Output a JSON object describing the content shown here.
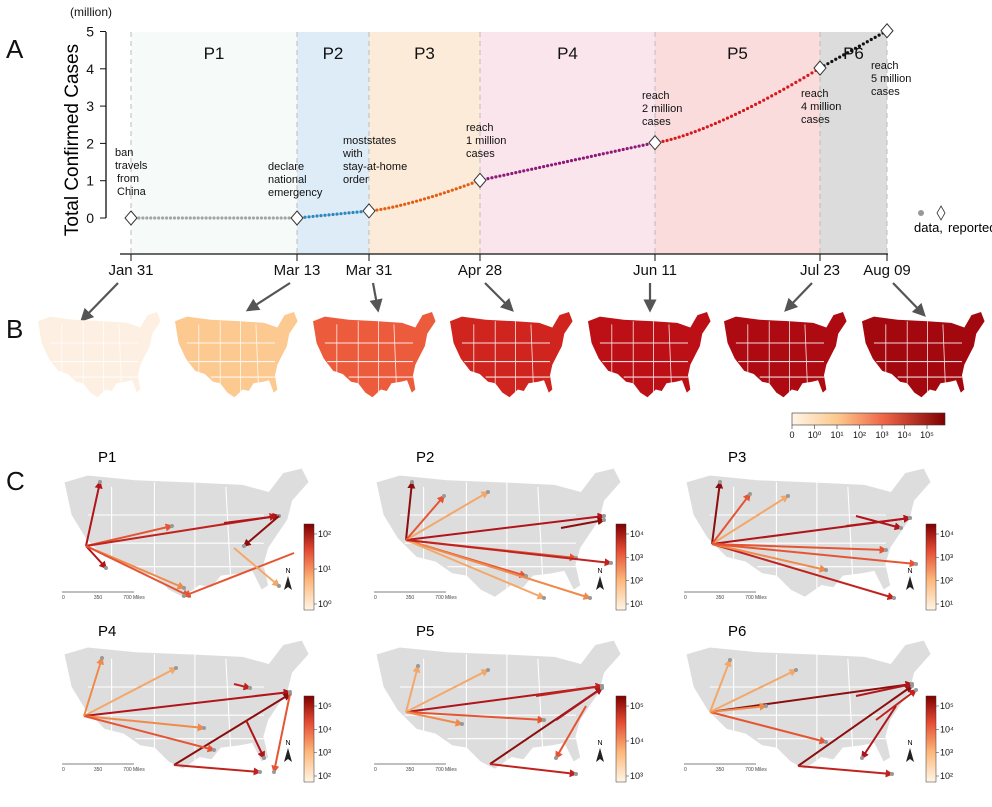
{
  "panels": {
    "a": "A",
    "b": "B",
    "c": "C"
  },
  "chart_data": {
    "type": "line",
    "ylabel": "Total Confirmed Cases",
    "yunit": "(million)",
    "ylim": [
      0,
      5
    ],
    "yticks": [
      "0",
      "1",
      "2",
      "3",
      "4",
      "5"
    ],
    "x_dates": [
      "Jan 31",
      "Mar 13",
      "Mar 31",
      "Apr 28",
      "Jun 11",
      "Jul 23",
      "Aug 09"
    ],
    "phases": [
      {
        "name": "P1",
        "start": "Jan 31",
        "end": "Mar 13",
        "color": "#f6fbf9"
      },
      {
        "name": "P2",
        "start": "Mar 13",
        "end": "Mar 31",
        "color": "#deecf8"
      },
      {
        "name": "P3",
        "start": "Mar 31",
        "end": "Apr 28",
        "color": "#fcebd9"
      },
      {
        "name": "P4",
        "start": "Apr 28",
        "end": "Jun 11",
        "color": "#fbe5ec"
      },
      {
        "name": "P5",
        "start": "Jun 11",
        "end": "Jul 23",
        "color": "#fbdcdc"
      },
      {
        "name": "P6",
        "start": "Jul 23",
        "end": "Aug 09",
        "color": "#dcdcdc"
      }
    ],
    "series": [
      {
        "phase": "P1",
        "color": "#a5a5a5",
        "points": [
          [
            "Jan 31",
            0.0
          ],
          [
            "Mar 13",
            0.0
          ]
        ]
      },
      {
        "phase": "P2",
        "color": "#2f86bd",
        "points": [
          [
            "Mar 13",
            0.0
          ],
          [
            "Mar 31",
            0.19
          ]
        ]
      },
      {
        "phase": "P3",
        "color": "#e35d12",
        "points": [
          [
            "Mar 31",
            0.19
          ],
          [
            "Apr 28",
            1.01
          ]
        ]
      },
      {
        "phase": "P4",
        "color": "#8e1a79",
        "points": [
          [
            "Apr 28",
            1.01
          ],
          [
            "Jun 11",
            2.02
          ]
        ]
      },
      {
        "phase": "P5",
        "color": "#d7191c",
        "points": [
          [
            "Jun 11",
            2.02
          ],
          [
            "Jul 23",
            4.02
          ]
        ]
      },
      {
        "phase": "P6",
        "color": "#111111",
        "points": [
          [
            "Jul 23",
            4.02
          ],
          [
            "Aug 09",
            5.02
          ]
        ]
      }
    ],
    "milestones": [
      {
        "date": "Jan 31",
        "value": 0.0,
        "label": [
          "ban",
          "travels",
          "from",
          "China"
        ]
      },
      {
        "date": "Mar 13",
        "value": 0.0,
        "label": [
          "declare",
          "national",
          "emergency"
        ]
      },
      {
        "date": "Mar 31",
        "value": 0.19,
        "label": [
          "moststates",
          "with",
          "stay-at-home",
          "order"
        ]
      },
      {
        "date": "Apr 28",
        "value": 1.01,
        "label": [
          "reach",
          "1 million",
          "cases"
        ]
      },
      {
        "date": "Jun 11",
        "value": 2.02,
        "label": [
          "reach",
          "2 million",
          "cases"
        ]
      },
      {
        "date": "Jul 23",
        "value": 4.02,
        "label": [
          "reach",
          "4 million",
          "cases"
        ]
      },
      {
        "date": "Aug 09",
        "value": 5.02,
        "label": [
          "reach",
          "5 million",
          "cases"
        ]
      }
    ],
    "legend": {
      "data": "data,",
      "reported": "reported"
    }
  },
  "choropleth": {
    "maps": [
      "Jan 31",
      "Mar 13",
      "Mar 31",
      "Apr 28",
      "Jun 11",
      "Jul 23",
      "Aug 09"
    ],
    "colorbar_ticks": [
      "0",
      "10⁰",
      "10¹",
      "10²",
      "10³",
      "10⁴",
      "10⁵"
    ],
    "colors": [
      "#fdf0e2",
      "#fcc990",
      "#ec5b3c",
      "#d0251f",
      "#bd1016",
      "#ad0a12",
      "#a3080f"
    ]
  },
  "flow_maps": [
    {
      "label": "P1",
      "cbar_ticks": [
        "10²",
        "10¹",
        "10⁰"
      ]
    },
    {
      "label": "P2",
      "cbar_ticks": [
        "10⁴",
        "10³",
        "10²",
        "10¹"
      ]
    },
    {
      "label": "P3",
      "cbar_ticks": [
        "10⁴",
        "10³",
        "10²",
        "10¹"
      ]
    },
    {
      "label": "P4",
      "cbar_ticks": [
        "10⁵",
        "10⁴",
        "10³",
        "10²"
      ]
    },
    {
      "label": "P5",
      "cbar_ticks": [
        "10⁵",
        "10⁴",
        "10³"
      ]
    },
    {
      "label": "P6",
      "cbar_ticks": [
        "10⁵",
        "10⁴",
        "10³",
        "10²"
      ]
    }
  ],
  "scale_bar": {
    "ticks": [
      "0",
      "350",
      "700 Miles"
    ]
  },
  "north": "N"
}
